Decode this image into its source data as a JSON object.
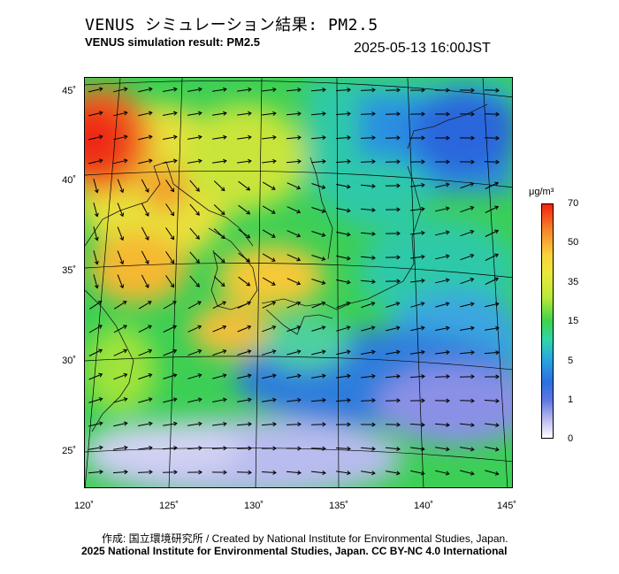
{
  "header": {
    "title_ja": "VENUS シミュレーション結果: PM2.5",
    "title_en": "VENUS simulation result: PM2.5",
    "datetime": "2025-05-13 16:00JST"
  },
  "map": {
    "lat_labels": [
      "45˚",
      "40˚",
      "35˚",
      "30˚",
      "25˚"
    ],
    "lon_labels": [
      "120˚",
      "125˚",
      "130˚",
      "135˚",
      "140˚",
      "145˚"
    ]
  },
  "colorbar": {
    "unit": "μg/m³",
    "ticks": [
      "70",
      "50",
      "35",
      "15",
      "5",
      "1",
      "0"
    ],
    "colors": [
      "#f2230f",
      "#f6862a",
      "#f9d43d",
      "#b8e83a",
      "#3ed34d",
      "#2fd6a9",
      "#28a8e0",
      "#2b6fe0",
      "#b9b9ee",
      "#ffffff"
    ]
  },
  "footer": {
    "line1": "作成: 国立環境研究所 / Created by National Institute for Environmental Studies, Japan.",
    "line2": "2025 National Institute for Environmental Studies, Japan. CC BY-NC 4.0 International"
  }
}
